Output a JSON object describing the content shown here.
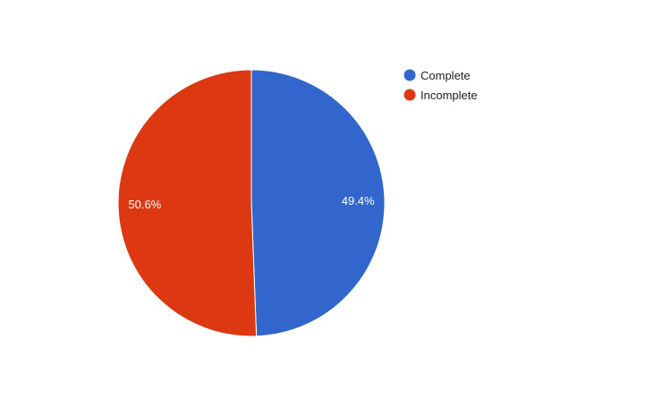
{
  "chart_data": {
    "type": "pie",
    "title": "",
    "legend_position": "top-right",
    "slices": [
      {
        "name": "Complete",
        "value": 49.4,
        "label": "49.4%",
        "color": "#3366cc"
      },
      {
        "name": "Incomplete",
        "value": 50.6,
        "label": "50.6%",
        "color": "#dc3912"
      }
    ]
  }
}
